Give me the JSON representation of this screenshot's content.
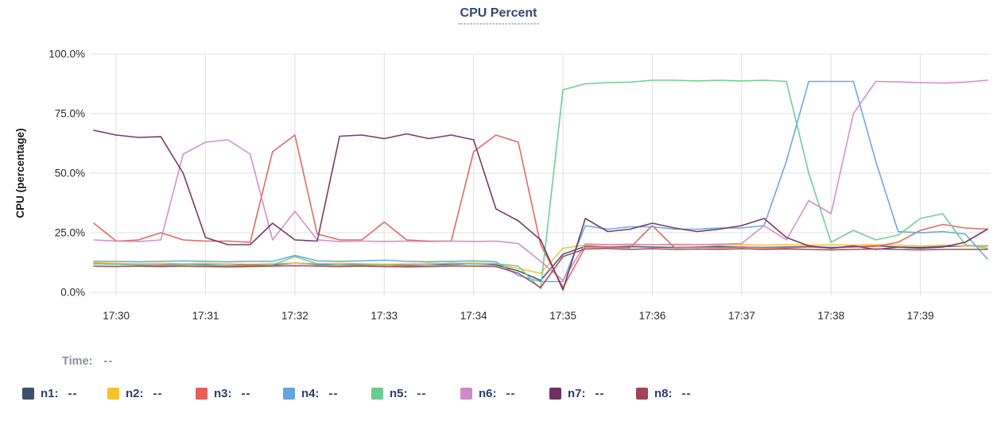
{
  "title": "CPU Percent",
  "time_row": {
    "label": "Time:",
    "value": "--"
  },
  "chart_data": {
    "type": "line",
    "title": "CPU Percent",
    "xlabel": "",
    "ylabel": "CPU (percentage)",
    "ylim": [
      0,
      100
    ],
    "grid": true,
    "y_tick_values": [
      100,
      75,
      50,
      25,
      0
    ],
    "y_tick_labels": [
      "100.0%",
      "75.0%",
      "50.0%",
      "25.0%",
      "0.0%"
    ],
    "x_tick_labels": [
      "17:30",
      "17:31",
      "17:32",
      "17:33",
      "17:34",
      "17:35",
      "17:36",
      "17:37",
      "17:38",
      "17:39"
    ],
    "x_tick_indices": [
      1,
      5,
      9,
      13,
      17,
      21,
      25,
      29,
      33,
      37
    ],
    "x_start_time": "17:29:45",
    "x_interval_seconds": 15,
    "series": [
      {
        "name": "n1",
        "color": "#3E4F6D",
        "values": [
          12,
          11.8,
          11.5,
          11.5,
          11.7,
          11.5,
          11.3,
          11.5,
          11.5,
          12.3,
          11.7,
          11.5,
          11.8,
          11.5,
          11.3,
          11.5,
          11.7,
          12,
          11.5,
          9,
          5,
          16,
          19.3,
          19,
          19.2,
          19,
          18.8,
          19,
          19.2,
          19,
          18.8,
          19,
          19.2,
          18.8,
          19,
          19.5,
          19,
          18.8,
          19.2,
          19.5,
          19.5
        ]
      },
      {
        "name": "n2",
        "color": "#F5C32D",
        "values": [
          12.5,
          12.2,
          12,
          12.2,
          12,
          12.2,
          12,
          11.8,
          12,
          12.3,
          12,
          12.2,
          12,
          11.8,
          12,
          12.2,
          12,
          12.3,
          12,
          10,
          8,
          18.5,
          19.8,
          20,
          19.8,
          20,
          19.8,
          20,
          19.8,
          20,
          19.8,
          20,
          19.8,
          20,
          19.8,
          20,
          19.8,
          19.5,
          19.8,
          19.5,
          19.3
        ]
      },
      {
        "name": "n3",
        "color": "#E0625C",
        "values": [
          29,
          21.5,
          22,
          25,
          22,
          21.5,
          21.5,
          21,
          59,
          66,
          24.5,
          22,
          22,
          29.5,
          22,
          21.5,
          21.5,
          59,
          66,
          63,
          20,
          2,
          19,
          19,
          18.7,
          28,
          18.7,
          19,
          18.7,
          19,
          18.7,
          18.7,
          19,
          18.7,
          19,
          19.3,
          21,
          26,
          28.5,
          27,
          26.5
        ]
      },
      {
        "name": "n4",
        "color": "#67A3DC",
        "values": [
          13,
          13,
          12.8,
          13,
          13.2,
          13,
          12.8,
          13,
          13,
          15.5,
          13.2,
          13,
          13.2,
          13.5,
          13,
          12.8,
          13,
          13.2,
          12.8,
          7,
          4.5,
          4.5,
          28,
          26.5,
          27.5,
          27.5,
          26.5,
          26.5,
          27,
          27,
          28,
          55,
          88.5,
          88.5,
          88.5,
          55,
          25.5,
          25,
          25.5,
          24.5,
          14
        ]
      },
      {
        "name": "n5",
        "color": "#6CCB8E",
        "values": [
          12,
          11.8,
          11.5,
          11.3,
          11.5,
          11.8,
          11.3,
          11,
          11.5,
          15,
          12,
          11.5,
          11.3,
          11.5,
          11,
          11.5,
          12.3,
          11.8,
          12,
          11,
          1.5,
          85,
          87.5,
          88,
          88.2,
          89,
          89,
          88.7,
          89,
          88.7,
          89,
          88.5,
          50,
          21,
          26,
          22,
          24,
          31,
          33,
          20,
          18.5
        ]
      },
      {
        "name": "n6",
        "color": "#CE8BC9",
        "values": [
          22,
          21.5,
          21.3,
          22,
          58,
          63,
          64,
          58,
          22,
          34,
          22,
          21.3,
          21.5,
          21.3,
          21.5,
          21.3,
          21.5,
          21.3,
          21.5,
          20.5,
          13,
          5,
          20.3,
          20,
          20.2,
          20,
          20.2,
          20,
          20.2,
          20.5,
          28,
          22,
          38.5,
          33,
          75,
          88.5,
          88.3,
          88,
          87.8,
          88.2,
          89
        ]
      },
      {
        "name": "n7",
        "color": "#703064",
        "values": [
          68,
          66,
          65,
          65.3,
          50,
          23,
          20,
          20,
          29,
          22,
          21.5,
          65.5,
          66,
          64.5,
          66.5,
          64.5,
          66,
          64,
          35,
          30,
          22,
          1,
          31,
          25.5,
          26.5,
          29,
          27,
          25.5,
          26.5,
          28,
          31,
          23,
          19.5,
          18.5,
          19.5,
          18,
          19,
          18.5,
          19,
          21,
          26.5
        ]
      },
      {
        "name": "n8",
        "color": "#9E4455",
        "values": [
          11,
          10.8,
          11,
          10.8,
          11,
          10.8,
          10.7,
          10.8,
          11,
          11.2,
          11,
          10.8,
          11,
          10.8,
          10.7,
          10.8,
          11,
          11,
          10.8,
          8,
          2,
          15,
          18.2,
          18.4,
          18,
          18.3,
          18,
          18.2,
          18,
          18.3,
          18,
          18.2,
          18,
          17.8,
          18,
          18.2,
          18,
          17.8,
          18,
          18,
          18
        ]
      }
    ]
  },
  "legend": {
    "items": [
      {
        "name": "n1",
        "color": "#3E4F6D",
        "value": "--"
      },
      {
        "name": "n2",
        "color": "#F5C32D",
        "value": "--"
      },
      {
        "name": "n3",
        "color": "#E0625C",
        "value": "--"
      },
      {
        "name": "n4",
        "color": "#67A3DC",
        "value": "--"
      },
      {
        "name": "n5",
        "color": "#6CCB8E",
        "value": "--"
      },
      {
        "name": "n6",
        "color": "#CE8BC9",
        "value": "--"
      },
      {
        "name": "n7",
        "color": "#703064",
        "value": "--"
      },
      {
        "name": "n8",
        "color": "#9E4455",
        "value": "--"
      }
    ]
  },
  "colors": {
    "grid": "#E6E6E6",
    "title": "#33477B",
    "tick_text": "#2B2B2B",
    "legend_text": "#2B3D6B",
    "time_text": "#8A8F99"
  }
}
